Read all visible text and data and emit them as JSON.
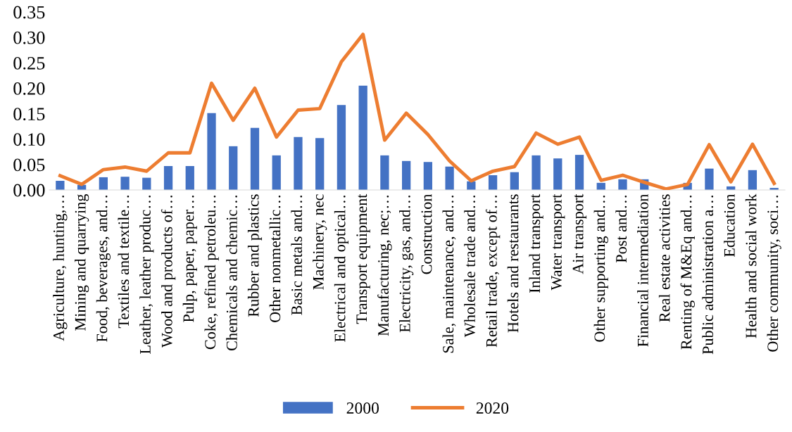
{
  "chart_data": {
    "type": "bar",
    "categories": [
      "Agriculture, hunting,…",
      "Mining and quarrying",
      "Food, beverages, and…",
      "Textiles and textile…",
      "Leather, leather produc…",
      "Wood and products of…",
      "Pulp, paper, paper…",
      "Coke, refined petroleu…",
      "Chemicals and chemic…",
      "Rubber and plastics",
      "Other nonmetallic…",
      "Basic metals and…",
      "Machinery, nec",
      "Electrical and optical…",
      "Transport equipment",
      "Manufacturing, nec;…",
      "Electricity, gas, and…",
      "Construction",
      "Sale, maintenance, and…",
      "Wholesale trade and…",
      "Retail trade, except of…",
      "Hotels and restaurants",
      "Inland transport",
      "Water transport",
      "Air transport",
      "Other supporting and…",
      "Post and…",
      "Financial intermediation",
      "Real estate activities",
      "Renting of M&Eq and…",
      "Public administration a…",
      "Education",
      "Health and social work",
      "Other community, soci…"
    ],
    "series": [
      {
        "name": "2000",
        "color": "#4472c4",
        "values": [
          0.018,
          0.01,
          0.025,
          0.026,
          0.024,
          0.047,
          0.047,
          0.151,
          0.086,
          0.122,
          0.068,
          0.104,
          0.102,
          0.167,
          0.205,
          0.068,
          0.057,
          0.055,
          0.046,
          0.017,
          0.029,
          0.035,
          0.068,
          0.062,
          0.069,
          0.014,
          0.021,
          0.021,
          null,
          0.014,
          0.042,
          0.007,
          0.039,
          0.004
        ]
      },
      {
        "name": "2020",
        "type": "line",
        "color": "#ed7d31",
        "values": [
          0.028,
          0.011,
          0.04,
          0.045,
          0.037,
          0.073,
          0.073,
          0.21,
          0.137,
          0.2,
          0.104,
          0.157,
          0.16,
          0.252,
          0.306,
          0.098,
          0.151,
          0.109,
          0.057,
          0.018,
          0.037,
          0.046,
          0.112,
          0.09,
          0.104,
          0.019,
          0.029,
          0.015,
          0.002,
          0.011,
          0.089,
          0.016,
          0.09,
          0.013
        ]
      }
    ],
    "ylim": [
      0,
      0.35
    ],
    "yticks": [
      {
        "value": 0,
        "label": "0.00"
      },
      {
        "value": 0.05,
        "label": "0.05"
      },
      {
        "value": 0.1,
        "label": "0.10"
      },
      {
        "value": 0.15,
        "label": "0.15"
      },
      {
        "value": 0.2,
        "label": "0.20"
      },
      {
        "value": 0.25,
        "label": "0.25"
      },
      {
        "value": 0.3,
        "label": "0.30"
      },
      {
        "value": 0.35,
        "label": "0.35"
      }
    ],
    "grid": false,
    "legend": "bottom"
  }
}
